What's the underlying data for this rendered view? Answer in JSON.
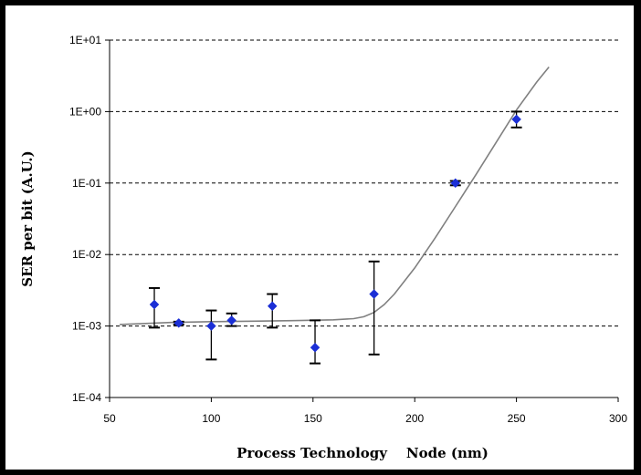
{
  "chart_data": {
    "type": "scatter",
    "xlabel": "Process Technology    Node (nm)",
    "ylabel": "SER per bit (A.U.)",
    "xlim": [
      50,
      300
    ],
    "ylim": [
      0.0001,
      10
    ],
    "yscale": "log",
    "x_ticks": [
      50,
      100,
      150,
      200,
      250,
      300
    ],
    "x_tick_labels": [
      "50",
      "100",
      "150",
      "200",
      "250",
      "300"
    ],
    "y_ticks": [
      0.0001,
      0.001,
      0.01,
      0.1,
      1,
      10
    ],
    "y_tick_labels": [
      "1E-04",
      "1E-03",
      "1E-02",
      "1E-01",
      "1E+00",
      "1E+01"
    ],
    "grid": "horizontal dashed",
    "legend": "none",
    "series": [
      {
        "kind": "points-with-error-bars",
        "color": "#1b2fd6",
        "points": [
          {
            "x": 72,
            "y": 0.002,
            "low": 0.00095,
            "high": 0.0034
          },
          {
            "x": 84,
            "y": 0.0011,
            "low": 0.00105,
            "high": 0.00115
          },
          {
            "x": 100,
            "y": 0.001,
            "low": 0.00034,
            "high": 0.00165
          },
          {
            "x": 110,
            "y": 0.0012,
            "low": 0.001,
            "high": 0.0015
          },
          {
            "x": 130,
            "y": 0.0019,
            "low": 0.00095,
            "high": 0.0028
          },
          {
            "x": 151,
            "y": 0.0005,
            "low": 0.0003,
            "high": 0.0012
          },
          {
            "x": 180,
            "y": 0.0028,
            "low": 0.0004,
            "high": 0.008
          },
          {
            "x": 220,
            "y": 0.1,
            "low": 0.093,
            "high": 0.107
          },
          {
            "x": 250,
            "y": 0.78,
            "low": 0.6,
            "high": 1.0
          }
        ]
      },
      {
        "kind": "fit-curve",
        "color": "#808080",
        "x": [
          55,
          80,
          100,
          120,
          140,
          160,
          170,
          175,
          180,
          185,
          190,
          200,
          210,
          220,
          230,
          240,
          250,
          260,
          266
        ],
        "y": [
          0.00105,
          0.00112,
          0.00115,
          0.00117,
          0.00119,
          0.00122,
          0.00127,
          0.00135,
          0.00155,
          0.002,
          0.0028,
          0.0065,
          0.017,
          0.047,
          0.13,
          0.37,
          1.05,
          2.6,
          4.2
        ]
      }
    ]
  }
}
